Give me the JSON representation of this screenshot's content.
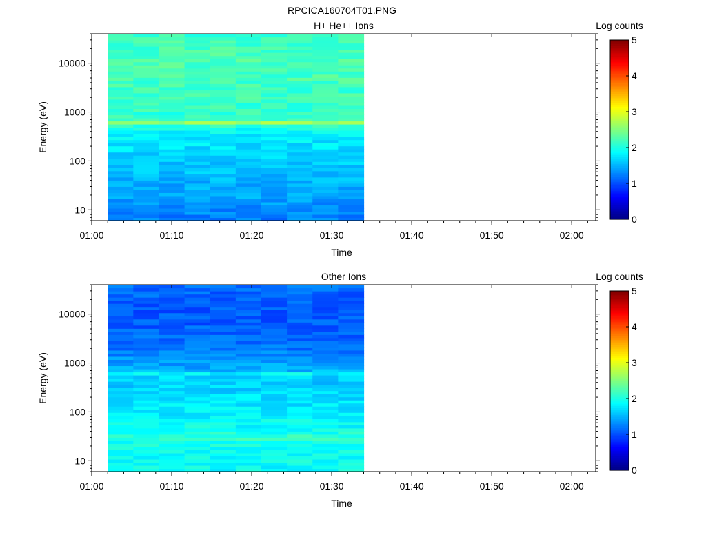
{
  "figure_title": "RPCICA160704T01.PNG",
  "colors": {
    "background": "#ffffff",
    "axis": "#000000",
    "colormap": "jet"
  },
  "chart_data": [
    {
      "type": "heatmap",
      "title": "H+ He++ Ions",
      "xlabel": "Time",
      "ylabel": "Energy (eV)",
      "colorbar_label": "Log counts",
      "colorbar_ticks": [
        "0",
        "1",
        "2",
        "3",
        "4",
        "5"
      ],
      "colorbar_range": [
        0,
        5
      ],
      "x_ticks": [
        "01:00",
        "01:10",
        "01:20",
        "01:30",
        "01:40",
        "01:50",
        "02:00"
      ],
      "y_ticks": [
        "10",
        "100",
        "1000",
        "10000"
      ],
      "y_scale": "log",
      "ylim_ev": [
        6,
        40000
      ],
      "xlim": [
        "01:00",
        "02:03"
      ],
      "data_time_range": [
        "01:02",
        "01:34"
      ],
      "time_bins": 10,
      "energy_profile": [
        {
          "energy_ev": 7,
          "log_counts": 1.25
        },
        {
          "energy_ev": 12,
          "log_counts": 1.35
        },
        {
          "energy_ev": 20,
          "log_counts": 1.45
        },
        {
          "energy_ev": 40,
          "log_counts": 1.5
        },
        {
          "energy_ev": 80,
          "log_counts": 1.6
        },
        {
          "energy_ev": 150,
          "log_counts": 1.7
        },
        {
          "energy_ev": 300,
          "log_counts": 1.8
        },
        {
          "energy_ev": 450,
          "log_counts": 1.9
        },
        {
          "energy_ev": 560,
          "log_counts": 2.2
        },
        {
          "energy_ev": 600,
          "log_counts": 2.75
        },
        {
          "energy_ev": 650,
          "log_counts": 2.3
        },
        {
          "energy_ev": 800,
          "log_counts": 2.1
        },
        {
          "energy_ev": 1500,
          "log_counts": 2.15
        },
        {
          "energy_ev": 4000,
          "log_counts": 2.2
        },
        {
          "energy_ev": 10000,
          "log_counts": 2.25
        },
        {
          "energy_ev": 25000,
          "log_counts": 2.2
        },
        {
          "energy_ev": 40000,
          "log_counts": 2.15
        }
      ]
    },
    {
      "type": "heatmap",
      "title": "Other Ions",
      "xlabel": "Time",
      "ylabel": "Energy (eV)",
      "colorbar_label": "Log counts",
      "colorbar_ticks": [
        "0",
        "1",
        "2",
        "3",
        "4",
        "5"
      ],
      "colorbar_range": [
        0,
        5
      ],
      "x_ticks": [
        "01:00",
        "01:10",
        "01:20",
        "01:30",
        "01:40",
        "01:50",
        "02:00"
      ],
      "y_ticks": [
        "10",
        "100",
        "1000",
        "10000"
      ],
      "y_scale": "log",
      "ylim_ev": [
        6,
        40000
      ],
      "xlim": [
        "01:00",
        "02:03"
      ],
      "data_time_range": [
        "01:02",
        "01:34"
      ],
      "time_bins": 10,
      "energy_profile": [
        {
          "energy_ev": 7,
          "log_counts": 1.9
        },
        {
          "energy_ev": 15,
          "log_counts": 1.95
        },
        {
          "energy_ev": 25,
          "log_counts": 2.0
        },
        {
          "energy_ev": 30,
          "log_counts": 2.15
        },
        {
          "energy_ev": 40,
          "log_counts": 1.95
        },
        {
          "energy_ev": 100,
          "log_counts": 1.8
        },
        {
          "energy_ev": 250,
          "log_counts": 1.7
        },
        {
          "energy_ev": 500,
          "log_counts": 1.6
        },
        {
          "energy_ev": 600,
          "log_counts": 1.9
        },
        {
          "energy_ev": 700,
          "log_counts": 1.5
        },
        {
          "energy_ev": 2000,
          "log_counts": 1.2
        },
        {
          "energy_ev": 8000,
          "log_counts": 1.05
        },
        {
          "energy_ev": 20000,
          "log_counts": 1.1
        },
        {
          "energy_ev": 40000,
          "log_counts": 1.15
        }
      ]
    }
  ]
}
